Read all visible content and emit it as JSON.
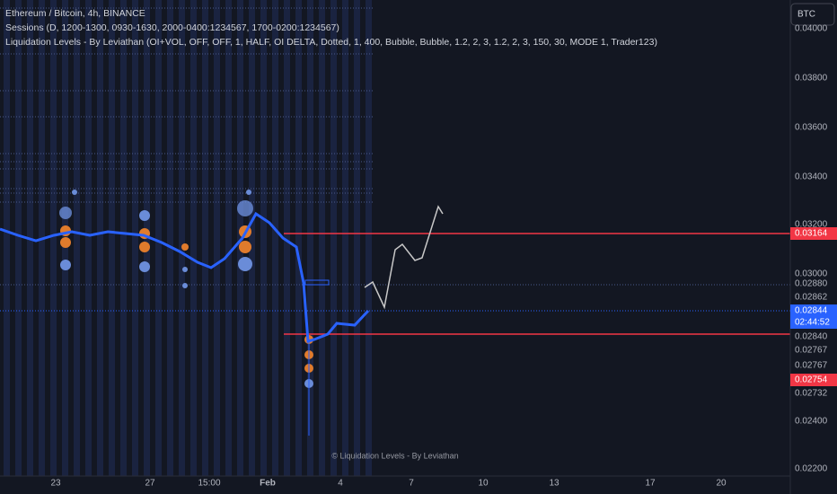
{
  "legend": [
    "Ethereum / Bitcoin, 4h, BINANCE",
    "Sessions (D, 1200-1300, 0930-1630, 2000-0400:1234567, 1700-0200:1234567)",
    "Liquidation Levels - By Leviathan (OI+VOL, OFF, OFF, 1, HALF, OI DELTA, Dotted, 1, 400, Bubble, Bubble, 1.2, 2, 3, 1.2, 2, 3, 150, 30, MODE 1, Trader123)"
  ],
  "currency_button": "BTC",
  "price_axis": [
    "0.04000",
    "0.03800",
    "0.03600",
    "0.03400",
    "0.03200",
    "0.03000",
    "0.02880",
    "0.02862",
    "0.02840",
    "0.02767",
    "0.02767",
    "0.02732",
    "0.02400",
    "0.02200"
  ],
  "badges": {
    "upper_level": "0.03164",
    "last_price": "0.02844",
    "countdown": "02:44:52",
    "lower_level": "0.02754"
  },
  "time_axis": [
    "23",
    "27",
    "15:00",
    "Feb",
    "4",
    "7",
    "10",
    "13",
    "17",
    "20"
  ],
  "watermark": "© Liquidation Levels - By Leviathan"
}
